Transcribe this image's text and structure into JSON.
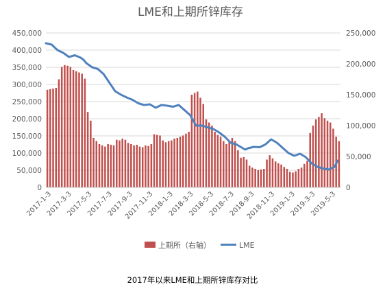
{
  "chart_data": {
    "type": "bar+line",
    "title": "LME和上期所锌库存",
    "caption": "2017年以来LME和上期所锌库存对比",
    "x_tick_labels": [
      "2017-1-3",
      "2017-3-3",
      "2017-5-3",
      "2017-7-3",
      "2017-9-3",
      "2017-11-3",
      "2018-1-3",
      "2018-3-3",
      "2018-5-3",
      "2018-7-3",
      "2018-9-3",
      "2018-11-3",
      "2019-1-3",
      "2019-3-3",
      "2019-5-3"
    ],
    "y_left": {
      "min": 0,
      "max": 450000,
      "step": 50000,
      "tick_labels": [
        "0",
        "50,000",
        "100,000",
        "150,000",
        "200,000",
        "250,000",
        "300,000",
        "350,000",
        "400,000",
        "450,000"
      ]
    },
    "y_right": {
      "min": 0,
      "max": 250000,
      "step": 50000,
      "tick_labels": [
        "0",
        "50,000",
        "100,000",
        "150,000",
        "200,000",
        "250,000"
      ]
    },
    "legend_position": "bottom",
    "series": [
      {
        "name": "上期所（右轴）",
        "kind": "bar",
        "axis": "right",
        "color": "#C0504D",
        "values": [
          158000,
          159000,
          160000,
          161000,
          175000,
          195000,
          198000,
          197000,
          195000,
          190000,
          188000,
          186000,
          184000,
          176000,
          122000,
          108000,
          80000,
          75000,
          70000,
          68000,
          66000,
          70000,
          69000,
          68000,
          77000,
          76000,
          79000,
          77000,
          72000,
          70000,
          68000,
          69000,
          66000,
          65000,
          68000,
          67000,
          70000,
          86000,
          85000,
          84000,
          76000,
          73000,
          75000,
          76000,
          79000,
          80000,
          82000,
          84000,
          87000,
          90000,
          150000,
          153000,
          155000,
          145000,
          135000,
          110000,
          105000,
          100000,
          90000,
          85000,
          82000,
          75000,
          70000,
          74000,
          80000,
          75000,
          60000,
          48000,
          49000,
          45000,
          35000,
          32000,
          30000,
          28000,
          29000,
          30000,
          45000,
          52000,
          47000,
          42000,
          39000,
          37000,
          33000,
          30000,
          25000,
          24000,
          26000,
          30000,
          32000,
          38000,
          43000,
          88000,
          100000,
          110000,
          114000,
          120000,
          112000,
          108000,
          105000,
          95000,
          82000,
          75000
        ]
      },
      {
        "name": "LME",
        "kind": "line",
        "axis": "left",
        "color": "#4F81BD",
        "x_positions": [
          0,
          2,
          4,
          6,
          8,
          10,
          12,
          13,
          14,
          16,
          18,
          20,
          22,
          24,
          26,
          28,
          30,
          32,
          34,
          36,
          37,
          38,
          40,
          42,
          44,
          46,
          48,
          50,
          52,
          54,
          56,
          58,
          60,
          62,
          64,
          66,
          68,
          69,
          70,
          72,
          74,
          76,
          78,
          80,
          82,
          84,
          86,
          88,
          90,
          92,
          94,
          96,
          98,
          100,
          101
        ],
        "values": [
          420000,
          416000,
          400000,
          392000,
          380000,
          385000,
          378000,
          372000,
          362000,
          350000,
          345000,
          330000,
          305000,
          280000,
          270000,
          262000,
          255000,
          245000,
          240000,
          242000,
          237000,
          232000,
          240000,
          238000,
          235000,
          240000,
          225000,
          210000,
          180000,
          180000,
          175000,
          170000,
          160000,
          147000,
          130000,
          125000,
          115000,
          110000,
          114000,
          118000,
          117000,
          125000,
          140000,
          130000,
          115000,
          100000,
          92000,
          98000,
          88000,
          70000,
          60000,
          55000,
          52000,
          60000,
          78000
        ]
      }
    ]
  }
}
